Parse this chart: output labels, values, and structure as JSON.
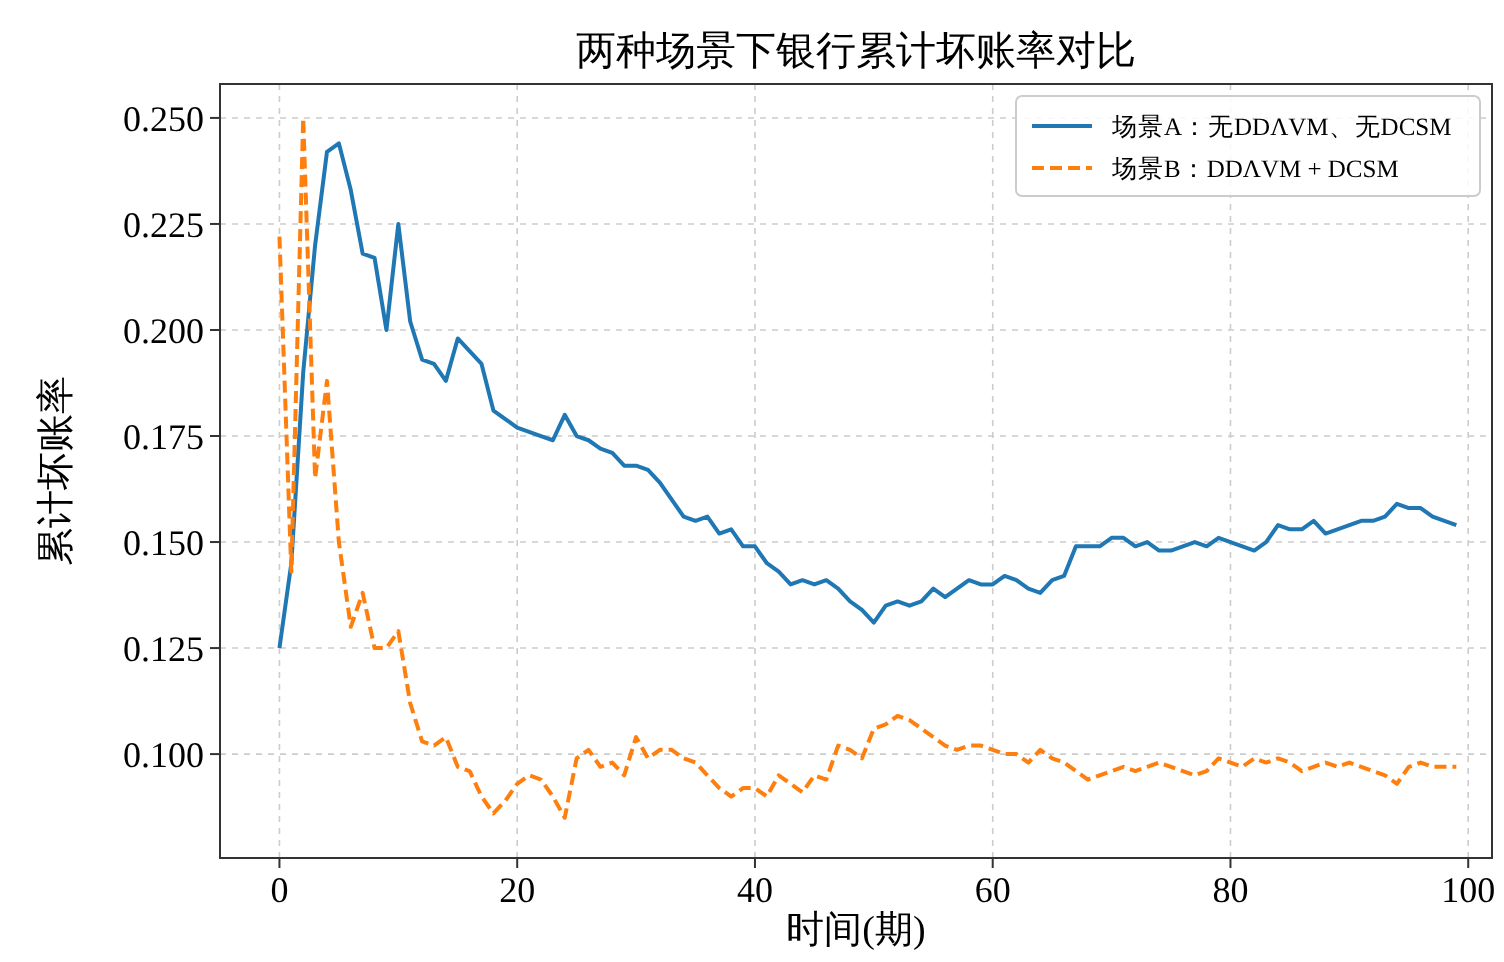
{
  "chart_data": {
    "type": "line",
    "title": "两种场景下银行累计坏账率对比",
    "xlabel": "时间(期)",
    "ylabel": "累计坏账率",
    "x": [
      0,
      1,
      2,
      3,
      4,
      5,
      6,
      7,
      8,
      9,
      10,
      11,
      12,
      13,
      14,
      15,
      16,
      17,
      18,
      19,
      20,
      21,
      22,
      23,
      24,
      25,
      26,
      27,
      28,
      29,
      30,
      31,
      32,
      33,
      34,
      35,
      36,
      37,
      38,
      39,
      40,
      41,
      42,
      43,
      44,
      45,
      46,
      47,
      48,
      49,
      50,
      51,
      52,
      53,
      54,
      55,
      56,
      57,
      58,
      59,
      60,
      61,
      62,
      63,
      64,
      65,
      66,
      67,
      68,
      69,
      70,
      71,
      72,
      73,
      74,
      75,
      76,
      77,
      78,
      79,
      80,
      81,
      82,
      83,
      84,
      85,
      86,
      87,
      88,
      89,
      90,
      91,
      92,
      93,
      94,
      95,
      96,
      97,
      98,
      99
    ],
    "series": [
      {
        "name": "场景A：无DDΛVM、无DCSM",
        "color": "#1f77b4",
        "line_style": "solid",
        "values": [
          0.125,
          0.145,
          0.19,
          0.22,
          0.242,
          0.244,
          0.233,
          0.218,
          0.217,
          0.2,
          0.225,
          0.202,
          0.193,
          0.192,
          0.188,
          0.198,
          0.195,
          0.192,
          0.181,
          0.179,
          0.177,
          0.176,
          0.175,
          0.174,
          0.18,
          0.175,
          0.174,
          0.172,
          0.171,
          0.168,
          0.168,
          0.167,
          0.164,
          0.16,
          0.156,
          0.155,
          0.156,
          0.152,
          0.153,
          0.149,
          0.149,
          0.145,
          0.143,
          0.14,
          0.141,
          0.14,
          0.141,
          0.139,
          0.136,
          0.134,
          0.131,
          0.135,
          0.136,
          0.135,
          0.136,
          0.139,
          0.137,
          0.139,
          0.141,
          0.14,
          0.14,
          0.142,
          0.141,
          0.139,
          0.138,
          0.141,
          0.142,
          0.149,
          0.149,
          0.149,
          0.151,
          0.151,
          0.149,
          0.15,
          0.148,
          0.148,
          0.149,
          0.15,
          0.149,
          0.151,
          0.15,
          0.149,
          0.148,
          0.15,
          0.154,
          0.153,
          0.153,
          0.155,
          0.152,
          0.153,
          0.154,
          0.155,
          0.155,
          0.156,
          0.159,
          0.158,
          0.158,
          0.156,
          0.155,
          0.154
        ]
      },
      {
        "name": "场景B：DDΛVM + DCSM",
        "color": "#ff7f0e",
        "line_style": "dashed",
        "values": [
          0.222,
          0.143,
          0.25,
          0.165,
          0.188,
          0.15,
          0.13,
          0.138,
          0.125,
          0.125,
          0.129,
          0.112,
          0.103,
          0.102,
          0.104,
          0.097,
          0.096,
          0.09,
          0.086,
          0.089,
          0.093,
          0.095,
          0.094,
          0.09,
          0.085,
          0.099,
          0.101,
          0.097,
          0.098,
          0.095,
          0.104,
          0.099,
          0.101,
          0.101,
          0.099,
          0.098,
          0.095,
          0.092,
          0.09,
          0.092,
          0.092,
          0.09,
          0.095,
          0.093,
          0.091,
          0.095,
          0.094,
          0.102,
          0.101,
          0.099,
          0.106,
          0.107,
          0.109,
          0.108,
          0.106,
          0.104,
          0.102,
          0.101,
          0.102,
          0.102,
          0.101,
          0.1,
          0.1,
          0.098,
          0.101,
          0.099,
          0.098,
          0.096,
          0.094,
          0.095,
          0.096,
          0.097,
          0.096,
          0.097,
          0.098,
          0.097,
          0.096,
          0.095,
          0.096,
          0.099,
          0.098,
          0.097,
          0.099,
          0.098,
          0.099,
          0.098,
          0.096,
          0.097,
          0.098,
          0.097,
          0.098,
          0.097,
          0.096,
          0.095,
          0.093,
          0.097,
          0.098,
          0.097,
          0.097,
          0.097
        ]
      }
    ],
    "xlim": [
      -5,
      102
    ],
    "xticks": [
      0,
      20,
      40,
      60,
      80,
      100
    ],
    "ylim": [
      0.0755,
      0.258
    ],
    "yticks": [
      {
        "value": 0.1,
        "label": "0.100"
      },
      {
        "value": 0.125,
        "label": "0.125"
      },
      {
        "value": 0.15,
        "label": "0.150"
      },
      {
        "value": 0.175,
        "label": "0.175"
      },
      {
        "value": 0.2,
        "label": "0.200"
      },
      {
        "value": 0.225,
        "label": "0.225"
      },
      {
        "value": 0.25,
        "label": "0.250"
      }
    ],
    "grid": true,
    "legend": "top right",
    "marker": "none"
  }
}
